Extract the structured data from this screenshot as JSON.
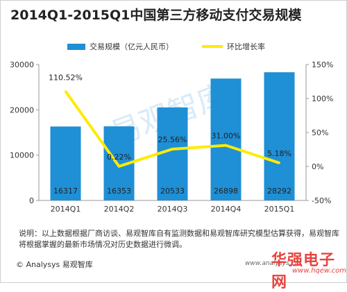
{
  "title": "2014Q1-2015Q1中国第三方移动支付交易规模",
  "legend": {
    "bar_label": "交易规模（亿元人民币）",
    "line_label": "环比增长率"
  },
  "note": "说明：以上数据根据厂商访谈、易观智库自有监测数据和易观智库研究模型估算获得，易观智库将根据掌握的最新市场情况对历史数据进行微调。",
  "footer": "© Analysys 易观智库",
  "site": "www.analysys.cn",
  "watermark": "易观智库",
  "brand": "华强电子网",
  "brand_url": "www.hqew.com",
  "colors": {
    "bar": "#1f8fd6",
    "line": "#ffeb00",
    "text": "#333333"
  },
  "chart_data": {
    "type": "bar",
    "categories": [
      "2014Q1",
      "2014Q2",
      "2014Q3",
      "2014Q4",
      "2015Q1"
    ],
    "series": [
      {
        "name": "交易规模（亿元人民币）",
        "type": "bar",
        "axis": "left",
        "values": [
          16317,
          16353,
          20533,
          26898,
          28292
        ]
      },
      {
        "name": "环比增长率",
        "type": "line",
        "axis": "right",
        "values": [
          110.52,
          0.22,
          25.56,
          31.0,
          5.18
        ]
      }
    ],
    "value_labels": [
      "16317",
      "16353",
      "20533",
      "26898",
      "28292"
    ],
    "rate_labels": [
      "110.52%",
      "0.22%",
      "25.56%",
      "31.00%",
      "5.18%"
    ],
    "y_left": {
      "ylim": [
        0,
        30000
      ],
      "ticks": [
        "0",
        "10000",
        "20000",
        "30000"
      ]
    },
    "y_right": {
      "ylim": [
        -50,
        150
      ],
      "ticks": [
        "-50%",
        "0%",
        "50%",
        "100%",
        "150%"
      ]
    },
    "legend_position": "top",
    "grid": false
  }
}
